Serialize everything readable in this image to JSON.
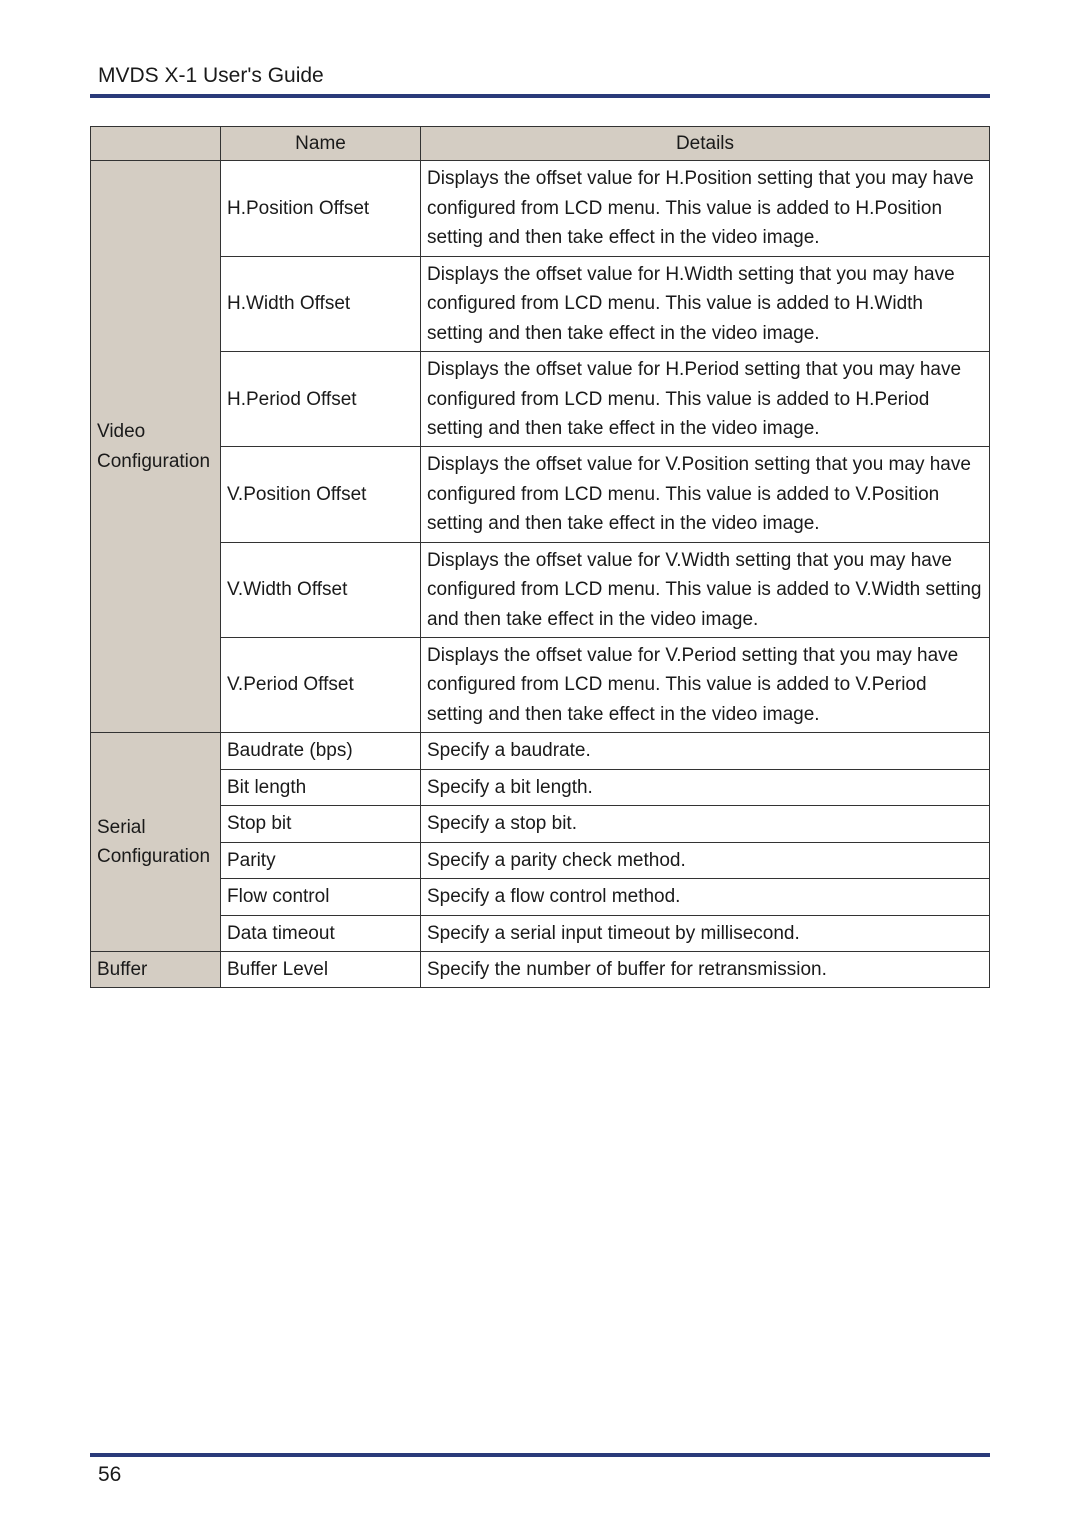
{
  "header": {
    "title": "MVDS X-1 User's Guide"
  },
  "table": {
    "columns": {
      "category": "",
      "name": "Name",
      "details": "Details"
    },
    "colors": {
      "header_bg": "#d4cdc3",
      "category_bg": "#d4cdc3",
      "border": "#333333",
      "rule": "#2a3a7a",
      "text": "#1a1a1a",
      "page_bg": "#ffffff"
    },
    "fontsize": 19,
    "groups": [
      {
        "category": "Video Configuration",
        "rows": [
          {
            "name": "H.Position Offset",
            "details": "Displays the offset value for H.Position setting that you may have configured from LCD menu.\nThis value is added to H.Position setting and then take effect in the video image."
          },
          {
            "name": "H.Width Offset",
            "details": "Displays the offset value for H.Width setting that you may have configured from LCD menu.\nThis value is added to H.Width setting and then take effect in the video image."
          },
          {
            "name": "H.Period Offset",
            "details": "Displays the offset value for H.Period setting that you may have configured from LCD menu.\nThis value is added to H.Period setting and then take effect in the video image."
          },
          {
            "name": "V.Position Offset",
            "details": "Displays the offset value for V.Position setting that you may have configured from LCD menu.\nThis value is added to V.Position setting and then take effect in the video image."
          },
          {
            "name": "V.Width Offset",
            "details": "Displays the offset value for V.Width setting that you may have configured from LCD menu.\nThis value is added to V.Width setting and then take effect in the video image."
          },
          {
            "name": "V.Period Offset",
            "details": "Displays the offset value for V.Period setting that you may have configured from LCD menu.\nThis value is added to V.Period setting and then take effect in the video image."
          }
        ]
      },
      {
        "category": "Serial Configuration",
        "rows": [
          {
            "name": "Baudrate (bps)",
            "details": "Specify a baudrate."
          },
          {
            "name": "Bit length",
            "details": "Specify a bit length."
          },
          {
            "name": "Stop bit",
            "details": "Specify a stop bit."
          },
          {
            "name": "Parity",
            "details": "Specify a parity check method."
          },
          {
            "name": "Flow control",
            "details": "Specify a flow control method."
          },
          {
            "name": "Data timeout",
            "details": "Specify a serial input timeout by millisecond."
          }
        ]
      },
      {
        "category": "Buffer",
        "rows": [
          {
            "name": "Buffer Level",
            "details": "Specify the number of buffer for retransmission."
          }
        ]
      }
    ]
  },
  "footer": {
    "page_number": "56"
  }
}
